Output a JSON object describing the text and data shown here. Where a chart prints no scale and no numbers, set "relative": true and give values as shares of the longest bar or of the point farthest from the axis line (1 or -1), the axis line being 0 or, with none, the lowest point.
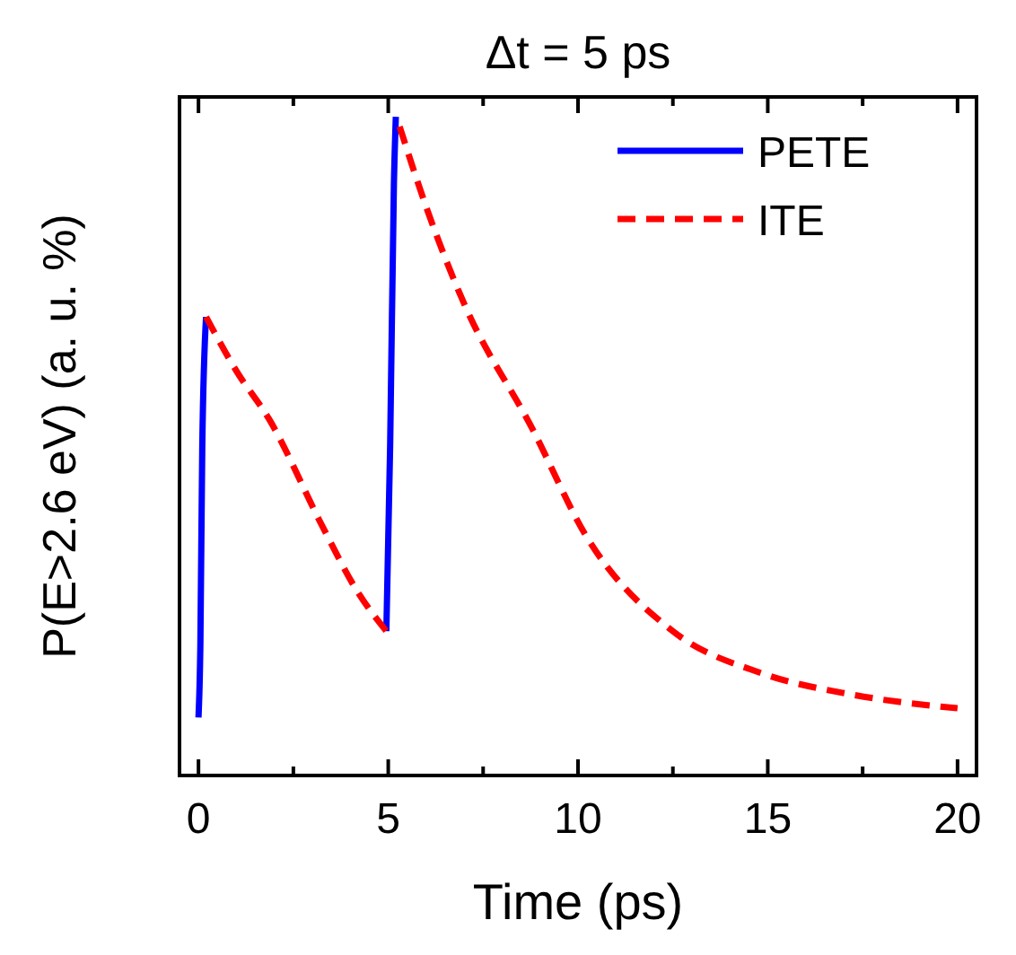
{
  "chart_data": {
    "type": "line",
    "title": "Δt = 5 ps",
    "xlabel": "Time (ps)",
    "ylabel": "P(E>2.6 eV) (a. u. %)",
    "relative": true,
    "xlim": [
      -0.5,
      20.5
    ],
    "xticks": [
      0,
      {
        "value": 2.5,
        "label": null
      },
      5,
      {
        "value": 7.5,
        "label": null
      },
      10,
      {
        "value": 12.5,
        "label": null
      },
      15,
      {
        "value": 17.5,
        "label": null
      },
      20
    ],
    "legend": "top right",
    "grid": false,
    "series": [
      {
        "name": "PETE",
        "color": "#0000ff",
        "line_style": "solid",
        "x": [
          0,
          0.05,
          0.1,
          0.2,
          null,
          4.95,
          5.05,
          5.15,
          5.2
        ],
        "values": [
          0.088,
          0.2,
          0.5,
          0.696,
          null,
          0.219,
          0.5,
          0.9,
          1.0
        ]
      },
      {
        "name": "ITE",
        "color": "#ff0000",
        "line_style": "dashed",
        "x": [
          0.2,
          1,
          1.86,
          3.25,
          4.2,
          4.95,
          null,
          5.3,
          6,
          7,
          8.8,
          10.2,
          12.5,
          14.85,
          17.2,
          20
        ],
        "values": [
          0.696,
          0.614,
          0.541,
          0.38,
          0.278,
          0.219,
          null,
          0.985,
          0.863,
          0.716,
          0.526,
          0.365,
          0.219,
          0.155,
          0.123,
          0.102
        ]
      }
    ]
  }
}
